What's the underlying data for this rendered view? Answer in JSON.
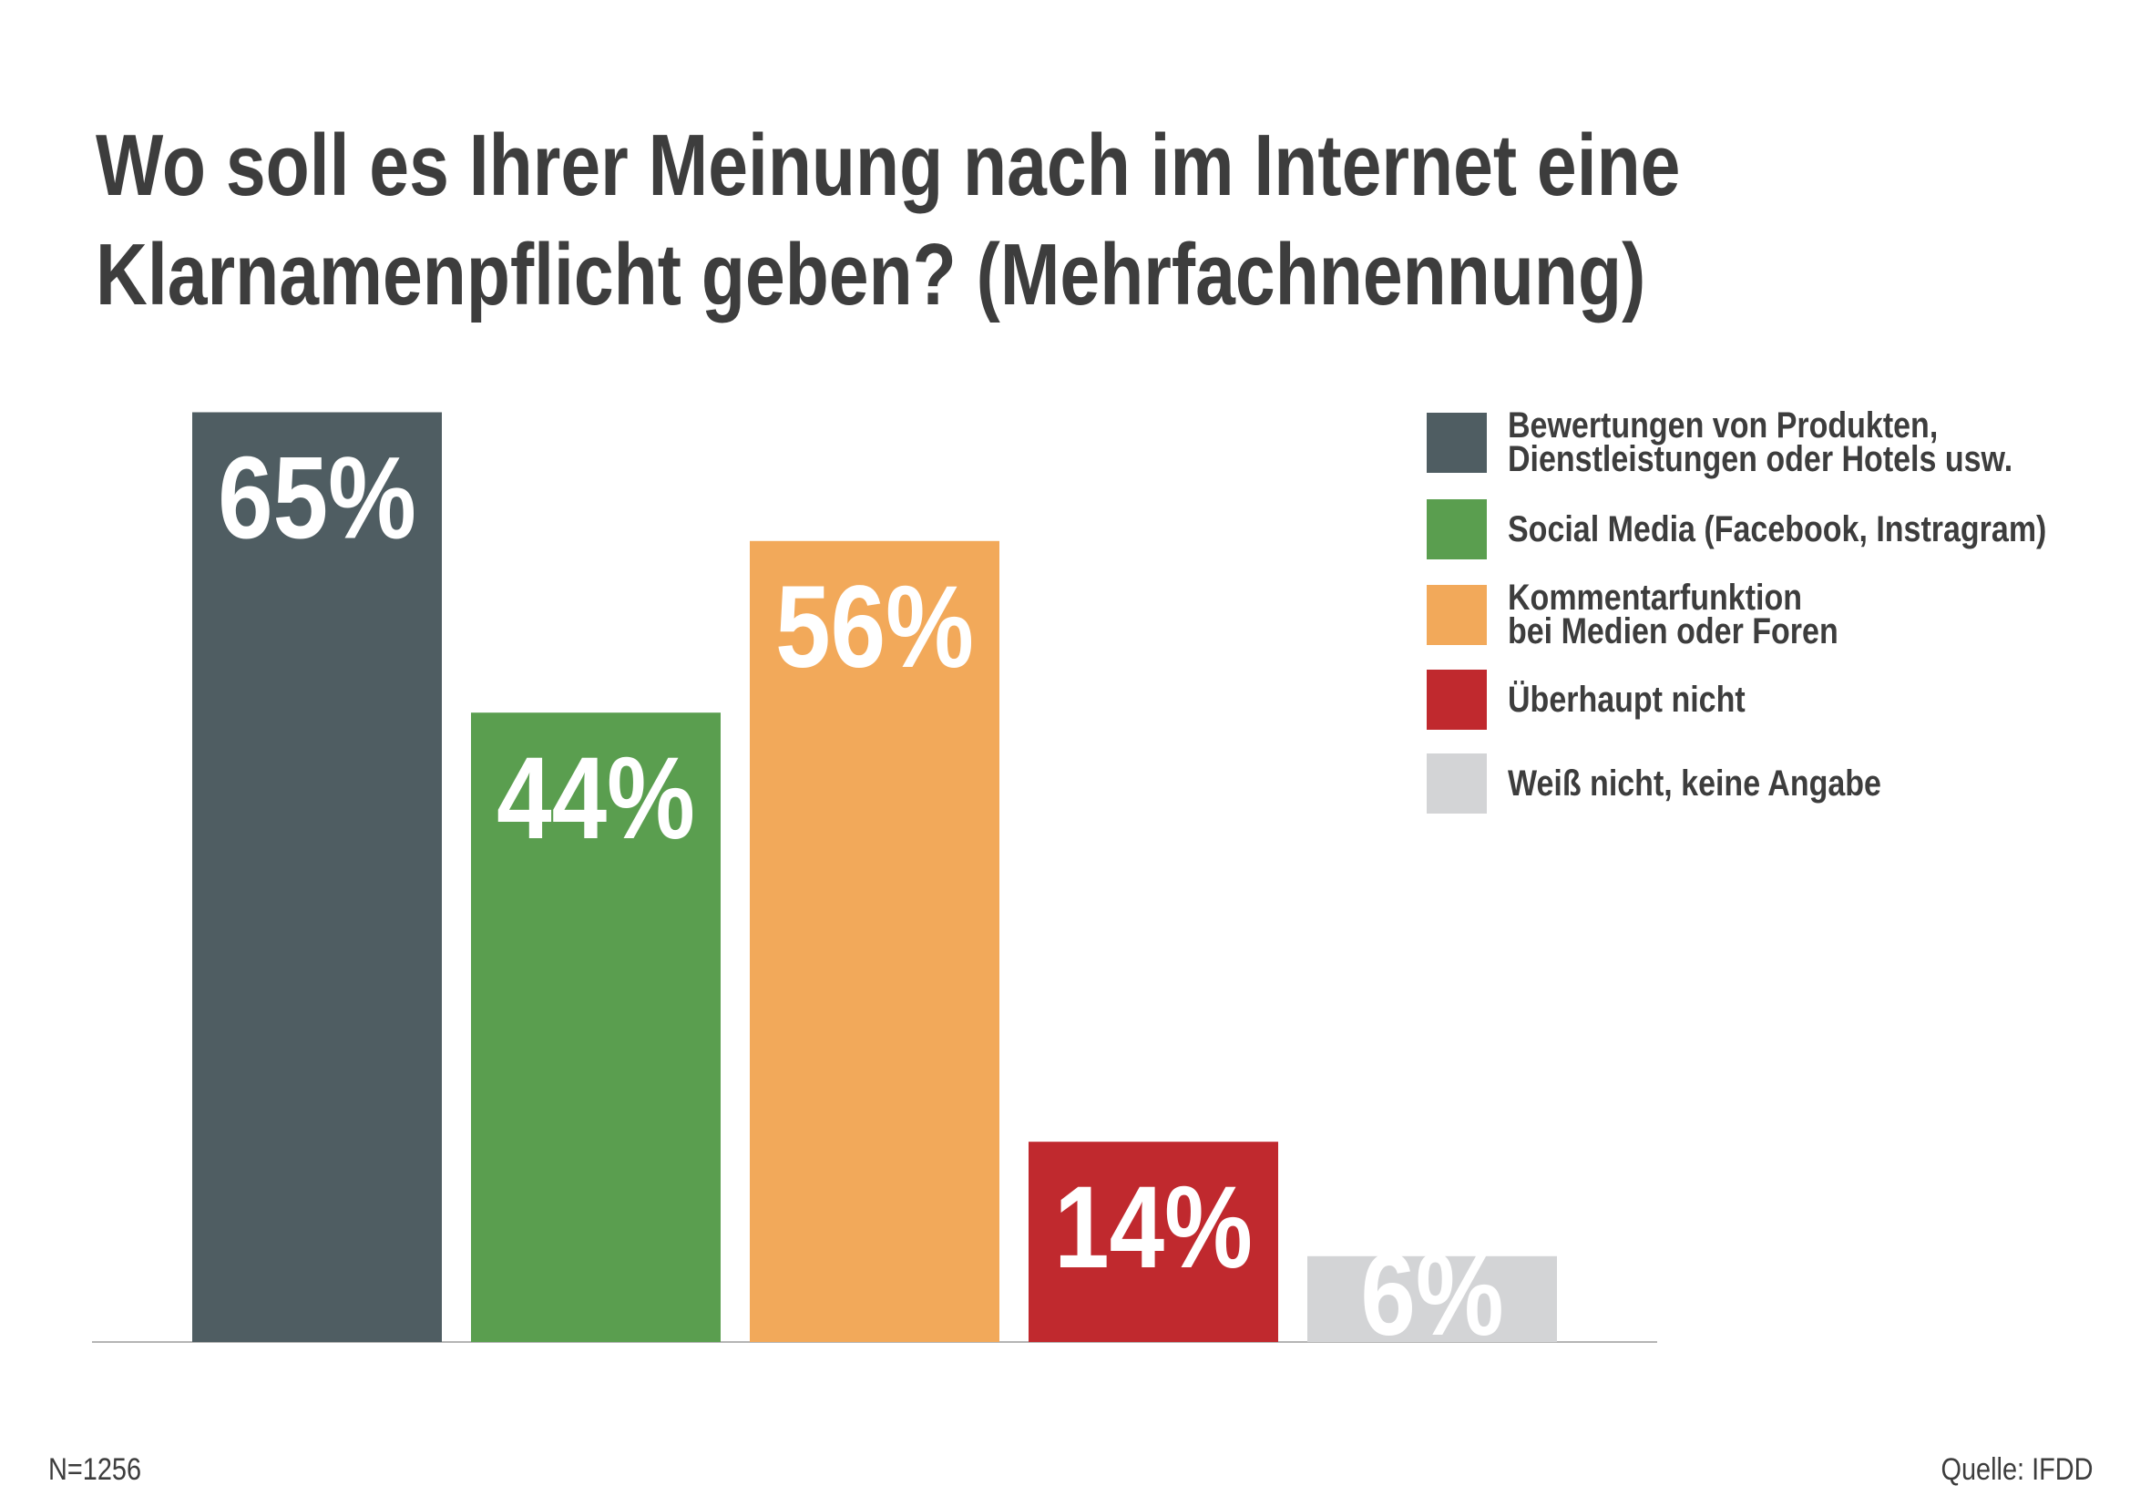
{
  "chart_data": {
    "type": "bar",
    "title": "Wo soll es Ihrer Meinung nach im Internet eine\nKlarnamenpflicht geben? (Mehrfachnennung)",
    "categories": [
      "Bewertungen von Produkten,\nDienstleistungen oder Hotels usw.",
      "Social Media (Facebook, Instragram)",
      "Kommentarfunktion\nbei Medien oder Foren",
      "Überhaupt nicht",
      "Weiß nicht, keine Angabe"
    ],
    "values": [
      65,
      44,
      56,
      14,
      6
    ],
    "value_labels": [
      "65%",
      "44%",
      "56%",
      "14%",
      "6%"
    ],
    "colors": [
      "#4f5d62",
      "#5a9e4f",
      "#f2a95a",
      "#c0292e",
      "#d3d4d6"
    ],
    "legend": "top-right",
    "annotations": [
      "N=1256",
      "Quelle: IFDD"
    ]
  }
}
